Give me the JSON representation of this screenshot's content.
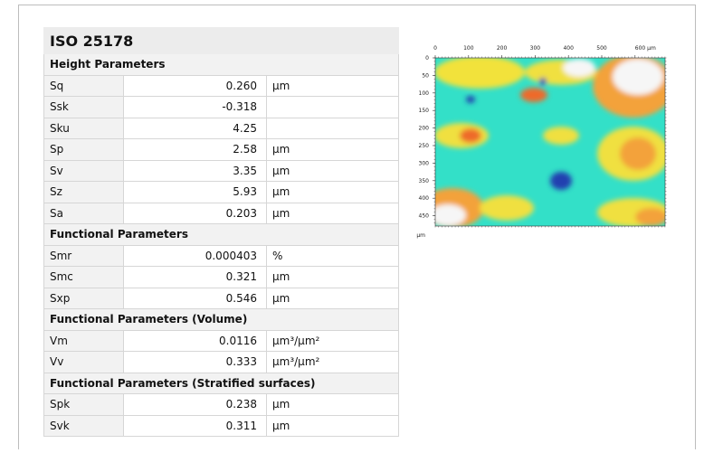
{
  "table": {
    "title": "ISO 25178",
    "sections": [
      {
        "heading": "Height Parameters",
        "rows": [
          {
            "name": "Sq",
            "value": "0.260",
            "unit": "µm"
          },
          {
            "name": "Ssk",
            "value": "-0.318"
          },
          {
            "name": "Sku",
            "value": "4.25"
          },
          {
            "name": "Sp",
            "value": "2.58",
            "unit": "µm"
          },
          {
            "name": "Sv",
            "value": "3.35",
            "unit": "µm"
          },
          {
            "name": "Sz",
            "value": "5.93",
            "unit": "µm"
          },
          {
            "name": "Sa",
            "value": "0.203",
            "unit": "µm"
          }
        ]
      },
      {
        "heading": "Functional Parameters",
        "rows": [
          {
            "name": "Smr",
            "value": "0.000403",
            "unit": "%"
          },
          {
            "name": "Smc",
            "value": "0.321",
            "unit": "µm"
          },
          {
            "name": "Sxp",
            "value": "0.546",
            "unit": "µm"
          }
        ]
      },
      {
        "heading": "Functional Parameters (Volume)",
        "rows": [
          {
            "name": "Vm",
            "value": "0.0116",
            "unit": "µm³/µm²"
          },
          {
            "name": "Vv",
            "value": "0.333",
            "unit": "µm³/µm²"
          }
        ]
      },
      {
        "heading": "Functional Parameters (Stratified surfaces)",
        "rows": [
          {
            "name": "Spk",
            "value": "0.238",
            "unit": "µm"
          },
          {
            "name": "Svk",
            "value": "0.311",
            "unit": "µm"
          }
        ]
      }
    ]
  },
  "map": {
    "x_ticks": [
      "0",
      "100",
      "200",
      "300",
      "400",
      "500",
      "600 µm"
    ],
    "y_ticks": [
      "0",
      "50",
      "100",
      "150",
      "200",
      "250",
      "300",
      "350",
      "400",
      "450"
    ],
    "y_unit": "µm"
  }
}
